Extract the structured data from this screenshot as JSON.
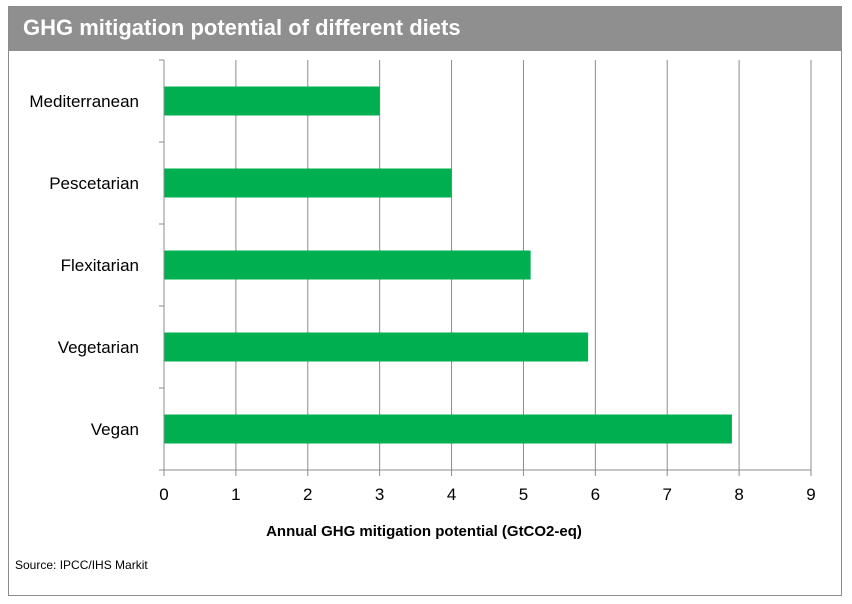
{
  "header": {
    "title": "GHG mitigation potential of different diets"
  },
  "footer": {
    "source": "Source: IPCC/IHS Markit"
  },
  "chart_data": {
    "type": "bar",
    "orientation": "horizontal",
    "title": "GHG mitigation potential of different diets",
    "xlabel": "Annual GHG mitigation potential (GtCO2-eq)",
    "ylabel": "",
    "categories": [
      "Mediterranean",
      "Pescetarian",
      "Flexitarian",
      "Vegetarian",
      "Vegan"
    ],
    "values": [
      3.0,
      4.0,
      5.1,
      5.9,
      7.9
    ],
    "xlim": [
      0,
      9
    ],
    "xticks": [
      "0",
      "1",
      "2",
      "3",
      "4",
      "5",
      "6",
      "7",
      "8",
      "9"
    ],
    "grid": "vertical",
    "legend": "none",
    "bar_color": "#00b050"
  }
}
